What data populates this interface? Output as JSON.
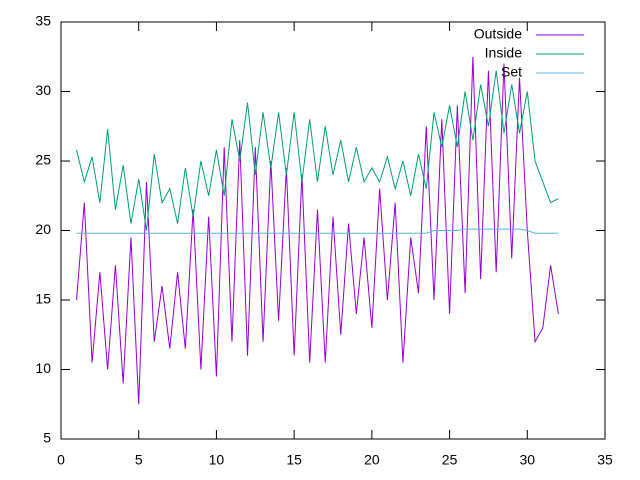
{
  "chart_data": {
    "type": "line",
    "x": [
      1,
      1.5,
      2,
      2.5,
      3,
      3.5,
      4,
      4.5,
      5,
      5.5,
      6,
      6.5,
      7,
      7.5,
      8,
      8.5,
      9,
      9.5,
      10,
      10.5,
      11,
      11.5,
      12,
      12.5,
      13,
      13.5,
      14,
      14.5,
      15,
      15.5,
      16,
      16.5,
      17,
      17.5,
      18,
      18.5,
      19,
      19.5,
      20,
      20.5,
      21,
      21.5,
      22,
      22.5,
      23,
      23.5,
      24,
      24.5,
      25,
      25.5,
      26,
      26.5,
      27,
      27.5,
      28,
      28.5,
      29,
      29.5,
      30,
      30.5,
      31,
      31.5,
      32
    ],
    "series": [
      {
        "name": "Outside",
        "color": "#9400d3",
        "values": [
          15,
          22,
          10.5,
          17,
          10,
          17.5,
          9,
          19.5,
          7.5,
          23.5,
          12,
          16,
          11.5,
          17,
          11.5,
          21.5,
          10,
          21,
          9.5,
          26,
          12,
          26.5,
          11,
          26,
          12,
          25,
          13.5,
          24.5,
          11,
          24,
          10.5,
          21.5,
          10.5,
          21,
          12.5,
          20.5,
          14,
          19.5,
          13,
          23,
          15,
          22,
          10.5,
          19.5,
          15.5,
          27.5,
          15,
          28,
          14,
          29,
          15.5,
          32.5,
          16.5,
          31.5,
          17,
          32,
          18,
          31,
          20,
          12,
          13,
          17.5,
          14
        ]
      },
      {
        "name": "Inside",
        "color": "#009e73",
        "values": [
          25.8,
          23.5,
          25.3,
          22,
          27.3,
          21.5,
          24.7,
          20.5,
          23.7,
          20,
          25.5,
          22,
          23,
          20.5,
          24.5,
          21,
          25,
          22.5,
          25.8,
          22.5,
          28,
          25,
          29.2,
          24,
          28.5,
          24.5,
          28.5,
          24,
          28.5,
          23.5,
          28,
          23.5,
          27.5,
          24,
          26.5,
          23.5,
          26,
          23.5,
          24.5,
          23.5,
          25.3,
          23,
          25,
          22.5,
          25.5,
          23,
          28.5,
          26,
          29,
          26,
          30,
          26.5,
          30.5,
          27.5,
          31.5,
          27,
          30.5,
          27,
          30,
          25,
          23.5,
          22,
          22.3
        ]
      },
      {
        "name": "Set",
        "color": "#56b4e9",
        "values": [
          19.8,
          19.8,
          19.8,
          19.8,
          19.8,
          19.8,
          19.8,
          19.8,
          19.8,
          19.8,
          19.8,
          19.8,
          19.8,
          19.8,
          19.8,
          19.8,
          19.8,
          19.8,
          19.8,
          19.8,
          19.8,
          19.8,
          19.8,
          19.8,
          19.8,
          19.8,
          19.8,
          19.8,
          19.8,
          19.8,
          19.8,
          19.8,
          19.8,
          19.8,
          19.8,
          19.8,
          19.8,
          19.8,
          19.8,
          19.8,
          19.8,
          19.8,
          19.8,
          19.8,
          19.8,
          19.8,
          20,
          20,
          20,
          20,
          20.1,
          20.1,
          20.1,
          20.1,
          20.1,
          20.1,
          20.1,
          20.1,
          20,
          19.8,
          19.8,
          19.8,
          19.8
        ]
      }
    ],
    "xlim": [
      0,
      35
    ],
    "xticks": [
      0,
      5,
      10,
      15,
      20,
      25,
      30,
      35
    ],
    "ylim": [
      5,
      35
    ],
    "yticks": [
      5,
      10,
      15,
      20,
      25,
      30,
      35
    ],
    "legend": "top-right",
    "grid": false
  }
}
